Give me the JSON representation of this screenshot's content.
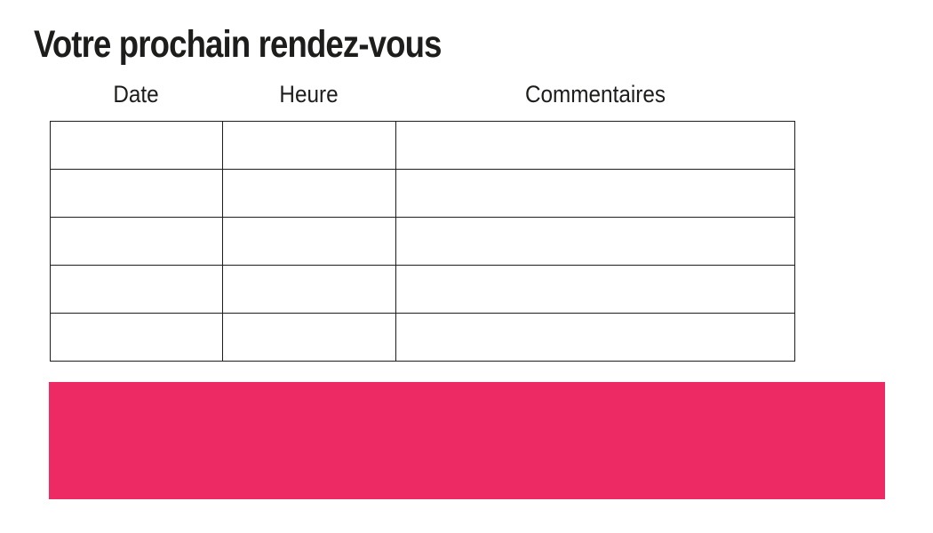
{
  "page": {
    "title": "Votre prochain rendez-vous"
  },
  "table": {
    "headers": [
      "Date",
      "Heure",
      "Commentaires"
    ],
    "rows": [
      {
        "cells": [
          "",
          "",
          ""
        ]
      },
      {
        "cells": [
          "",
          "",
          ""
        ]
      },
      {
        "cells": [
          "",
          "",
          ""
        ]
      },
      {
        "cells": [
          "",
          "",
          ""
        ]
      },
      {
        "cells": [
          "",
          "",
          ""
        ]
      }
    ]
  },
  "colors": {
    "background": "#ffffff",
    "text": "#1d1d1b",
    "table_border": "#1d1d1b",
    "banner": "#ee2a64"
  }
}
